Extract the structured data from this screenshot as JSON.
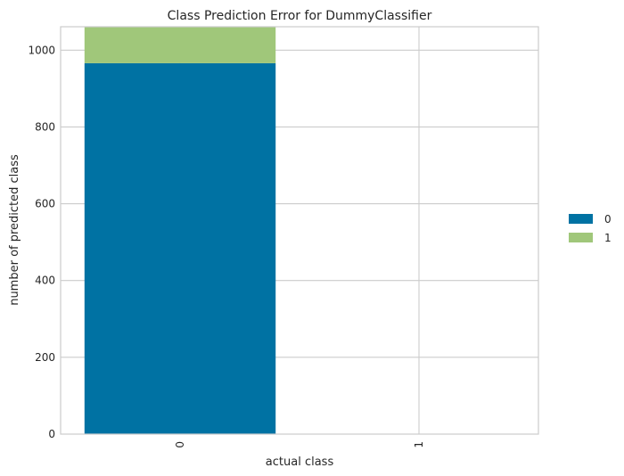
{
  "chart_data": {
    "type": "bar",
    "stacked": true,
    "title": "Class Prediction Error for DummyClassifier",
    "xlabel": "actual class",
    "ylabel": "number of predicted class",
    "categories": [
      "0",
      "1"
    ],
    "series": [
      {
        "name": "0",
        "values": [
          966,
          0
        ],
        "color": "#0072a3"
      },
      {
        "name": "1",
        "values": [
          95,
          0
        ],
        "color": "#a0c77a"
      }
    ],
    "ylim": [
      0,
      1061
    ],
    "yticks": [
      0,
      200,
      400,
      600,
      800,
      1000
    ],
    "grid": true,
    "legend": "right"
  }
}
